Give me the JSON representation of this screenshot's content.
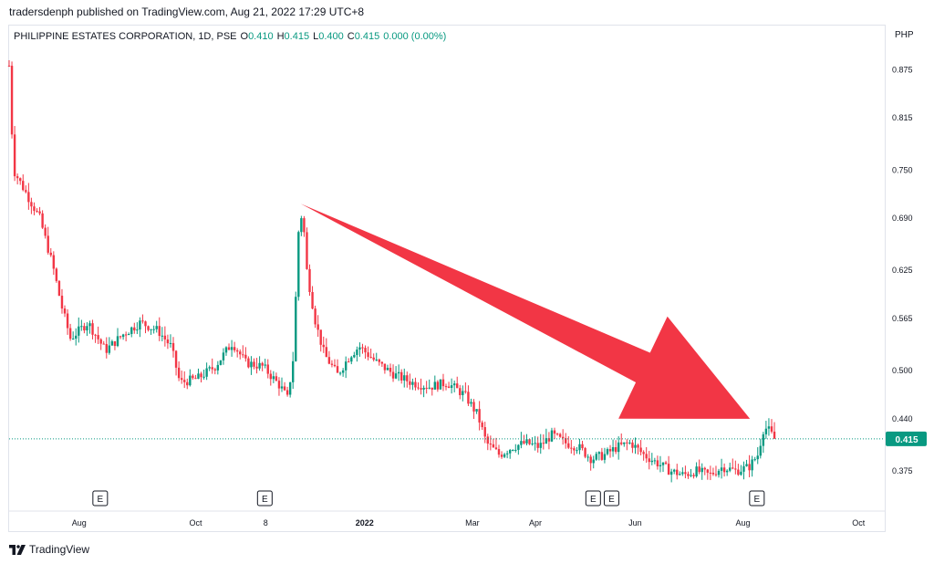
{
  "header": {
    "publish_text": "tradersdenph published on TradingView.com, Aug 21, 2022 17:29 UTC+8"
  },
  "legend": {
    "symbol": "PHILIPPINE ESTATES CORPORATION, 1D, PSE",
    "o_label": "O",
    "o_value": "0.410",
    "h_label": "H",
    "h_value": "0.415",
    "l_label": "L",
    "l_value": "0.400",
    "c_label": "C",
    "c_value": "0.415",
    "change": "0.000 (0.00%)"
  },
  "currency": "PHP",
  "footer": {
    "brand": "TradingView"
  },
  "colors": {
    "up": "#089981",
    "down": "#f23645",
    "arrow": "#f23645",
    "grid": "#e0e3eb",
    "last_price_line": "#089981"
  },
  "chart_data": {
    "type": "candlestick",
    "y_ticks": [
      0.875,
      0.815,
      0.75,
      0.69,
      0.625,
      0.565,
      0.5,
      0.44,
      0.375
    ],
    "y_tick_labels": [
      "0.875",
      "0.815",
      "0.750",
      "0.690",
      "0.625",
      "0.565",
      "0.500",
      "0.440",
      "0.375"
    ],
    "ylim": [
      0.325,
      0.93
    ],
    "x_labels": [
      {
        "label": "Aug",
        "pos": 0.08,
        "bold": false
      },
      {
        "label": "Oct",
        "pos": 0.213,
        "bold": false
      },
      {
        "label": "8",
        "pos": 0.293,
        "bold": false
      },
      {
        "label": "2022",
        "pos": 0.406,
        "bold": true
      },
      {
        "label": "Mar",
        "pos": 0.529,
        "bold": false
      },
      {
        "label": "Apr",
        "pos": 0.601,
        "bold": false
      },
      {
        "label": "Jun",
        "pos": 0.715,
        "bold": false
      },
      {
        "label": "Aug",
        "pos": 0.838,
        "bold": false
      },
      {
        "label": "Oct",
        "pos": 0.97,
        "bold": false
      }
    ],
    "earnings_markers": [
      {
        "label": "E",
        "pos": 0.104
      },
      {
        "label": "E",
        "pos": 0.292
      },
      {
        "label": "E",
        "pos": 0.667
      },
      {
        "label": "E",
        "pos": 0.688
      },
      {
        "label": "E",
        "pos": 0.854
      }
    ],
    "last_price": 0.415,
    "last_price_label": "0.415",
    "trend_path": [
      {
        "t": 0.0,
        "v": 0.88
      },
      {
        "t": 0.005,
        "v": 0.75
      },
      {
        "t": 0.02,
        "v": 0.72
      },
      {
        "t": 0.035,
        "v": 0.69
      },
      {
        "t": 0.05,
        "v": 0.63
      },
      {
        "t": 0.06,
        "v": 0.58
      },
      {
        "t": 0.07,
        "v": 0.54
      },
      {
        "t": 0.09,
        "v": 0.56
      },
      {
        "t": 0.11,
        "v": 0.525
      },
      {
        "t": 0.13,
        "v": 0.545
      },
      {
        "t": 0.15,
        "v": 0.56
      },
      {
        "t": 0.17,
        "v": 0.55
      },
      {
        "t": 0.185,
        "v": 0.53
      },
      {
        "t": 0.195,
        "v": 0.485
      },
      {
        "t": 0.215,
        "v": 0.49
      },
      {
        "t": 0.235,
        "v": 0.505
      },
      {
        "t": 0.255,
        "v": 0.535
      },
      {
        "t": 0.27,
        "v": 0.51
      },
      {
        "t": 0.29,
        "v": 0.505
      },
      {
        "t": 0.31,
        "v": 0.48
      },
      {
        "t": 0.318,
        "v": 0.465
      },
      {
        "t": 0.325,
        "v": 0.52
      },
      {
        "t": 0.33,
        "v": 0.67
      },
      {
        "t": 0.335,
        "v": 0.7
      },
      {
        "t": 0.34,
        "v": 0.625
      },
      {
        "t": 0.35,
        "v": 0.56
      },
      {
        "t": 0.36,
        "v": 0.52
      },
      {
        "t": 0.375,
        "v": 0.495
      },
      {
        "t": 0.39,
        "v": 0.52
      },
      {
        "t": 0.4,
        "v": 0.53
      },
      {
        "t": 0.42,
        "v": 0.51
      },
      {
        "t": 0.44,
        "v": 0.495
      },
      {
        "t": 0.46,
        "v": 0.485
      },
      {
        "t": 0.48,
        "v": 0.48
      },
      {
        "t": 0.5,
        "v": 0.485
      },
      {
        "t": 0.52,
        "v": 0.47
      },
      {
        "t": 0.535,
        "v": 0.445
      },
      {
        "t": 0.545,
        "v": 0.41
      },
      {
        "t": 0.56,
        "v": 0.395
      },
      {
        "t": 0.575,
        "v": 0.405
      },
      {
        "t": 0.59,
        "v": 0.41
      },
      {
        "t": 0.605,
        "v": 0.405
      },
      {
        "t": 0.62,
        "v": 0.42
      },
      {
        "t": 0.635,
        "v": 0.41
      },
      {
        "t": 0.65,
        "v": 0.405
      },
      {
        "t": 0.665,
        "v": 0.39
      },
      {
        "t": 0.68,
        "v": 0.395
      },
      {
        "t": 0.695,
        "v": 0.405
      },
      {
        "t": 0.71,
        "v": 0.41
      },
      {
        "t": 0.725,
        "v": 0.395
      },
      {
        "t": 0.74,
        "v": 0.385
      },
      {
        "t": 0.755,
        "v": 0.375
      },
      {
        "t": 0.77,
        "v": 0.37
      },
      {
        "t": 0.785,
        "v": 0.375
      },
      {
        "t": 0.8,
        "v": 0.37
      },
      {
        "t": 0.815,
        "v": 0.38
      },
      {
        "t": 0.83,
        "v": 0.375
      },
      {
        "t": 0.845,
        "v": 0.38
      },
      {
        "t": 0.855,
        "v": 0.395
      },
      {
        "t": 0.862,
        "v": 0.43
      },
      {
        "t": 0.868,
        "v": 0.425
      },
      {
        "t": 0.874,
        "v": 0.415
      }
    ],
    "arrow": {
      "start_t": 0.333,
      "start_v": 0.708,
      "end_t": 0.846,
      "end_v": 0.44
    }
  }
}
